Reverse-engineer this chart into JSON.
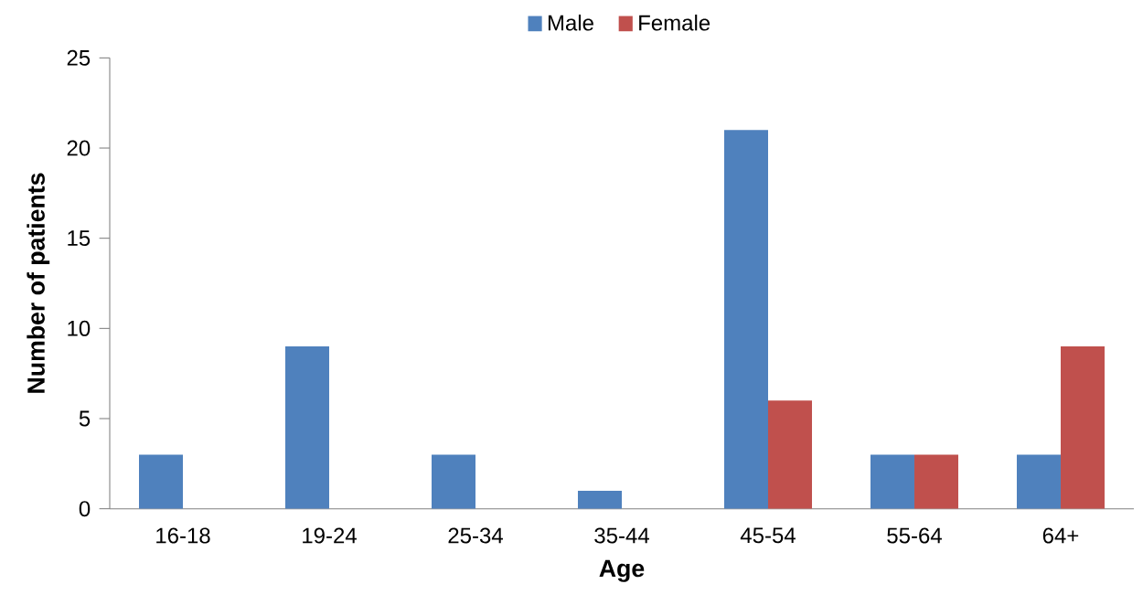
{
  "chart_data": {
    "type": "bar",
    "xlabel": "Age",
    "ylabel": "Number of patients",
    "categories": [
      "16-18",
      "19-24",
      "25-34",
      "35-44",
      "45-54",
      "55-64",
      "64+"
    ],
    "series": [
      {
        "name": "Male",
        "color": "#4f81bd",
        "values": [
          3,
          9,
          3,
          1,
          21,
          3,
          3
        ]
      },
      {
        "name": "Female",
        "color": "#c0504d",
        "values": [
          null,
          null,
          null,
          null,
          6,
          3,
          9
        ]
      }
    ],
    "ylim": [
      0,
      25
    ],
    "yticks": [
      0,
      5,
      10,
      15,
      20,
      25
    ],
    "grid": false,
    "legend": "top"
  }
}
